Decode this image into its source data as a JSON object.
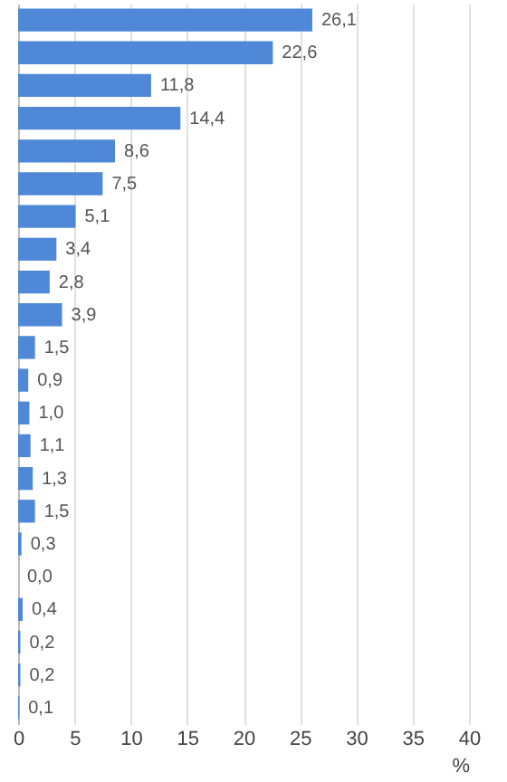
{
  "chart_data": {
    "type": "bar",
    "orientation": "horizontal",
    "xlabel": "%",
    "categories": [
      null,
      null,
      null,
      null,
      null,
      null,
      null,
      null,
      null,
      null,
      null,
      null,
      null,
      null,
      null,
      null,
      null,
      null,
      null,
      null,
      null,
      null
    ],
    "values": [
      26.1,
      22.6,
      11.8,
      14.4,
      8.6,
      7.5,
      5.1,
      3.4,
      2.8,
      3.9,
      1.5,
      0.9,
      1.0,
      1.1,
      1.3,
      1.5,
      0.3,
      0.0,
      0.4,
      0.2,
      0.2,
      0.1
    ],
    "value_labels": [
      "26,1",
      "22,6",
      "11,8",
      "14,4",
      "8,6",
      "7,5",
      "5,1",
      "3,4",
      "2,8",
      "3,9",
      "1,5",
      "0,9",
      "1,0",
      "1,1",
      "1,3",
      "1,5",
      "0,3",
      "0,0",
      "0,4",
      "0,2",
      "0,2",
      "0,1"
    ],
    "color": "#4f88d6",
    "xlim": [
      0,
      40
    ],
    "xticks": [
      0,
      5,
      10,
      15,
      20,
      25,
      30,
      35,
      40
    ],
    "grid": "x",
    "tick_labels": "x"
  }
}
